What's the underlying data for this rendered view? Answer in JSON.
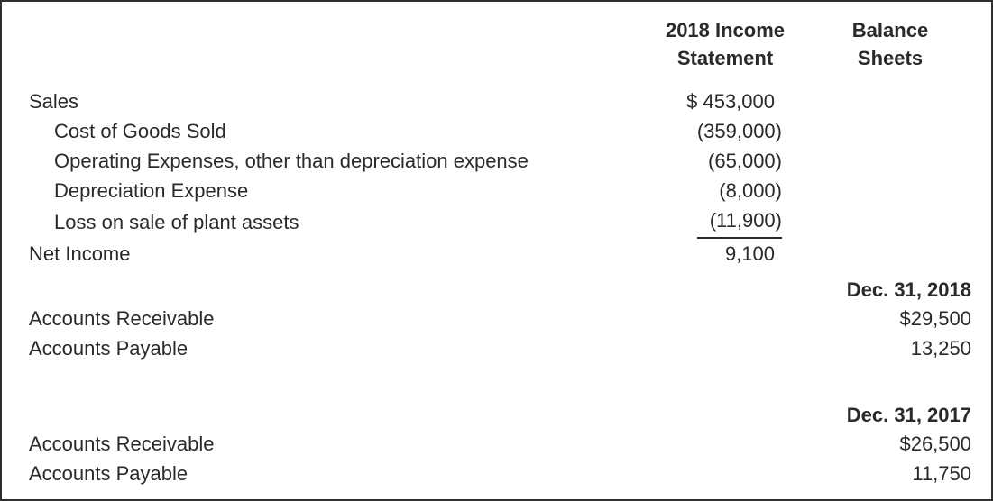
{
  "panel": {
    "headers": {
      "income": "2018 Income Statement",
      "balance": "Balance Sheets"
    },
    "income_statement": {
      "rows": [
        {
          "label": "Sales",
          "value": "$ 453,000"
        },
        {
          "label": "Cost of Goods Sold",
          "value": "(359,000)"
        },
        {
          "label": "Operating Expenses, other than depreciation expense",
          "value": "(65,000)"
        },
        {
          "label": "Depreciation Expense",
          "value": "(8,000)"
        },
        {
          "label": "Loss on sale of plant assets",
          "value": "(11,900)"
        },
        {
          "label": "Net Income",
          "value": "9,100"
        }
      ]
    },
    "balance_sheets": [
      {
        "date": "Dec. 31, 2018",
        "rows": [
          {
            "label": "Accounts Receivable",
            "value": "$29,500"
          },
          {
            "label": "Accounts Payable",
            "value": "13,250"
          }
        ]
      },
      {
        "date": "Dec. 31, 2017",
        "rows": [
          {
            "label": "Accounts Receivable",
            "value": "$26,500"
          },
          {
            "label": "Accounts Payable",
            "value": "11,750"
          }
        ]
      }
    ],
    "colors": {
      "text": "#2a2a2a",
      "border": "#2e2e2e",
      "background": "#ffffff"
    }
  }
}
